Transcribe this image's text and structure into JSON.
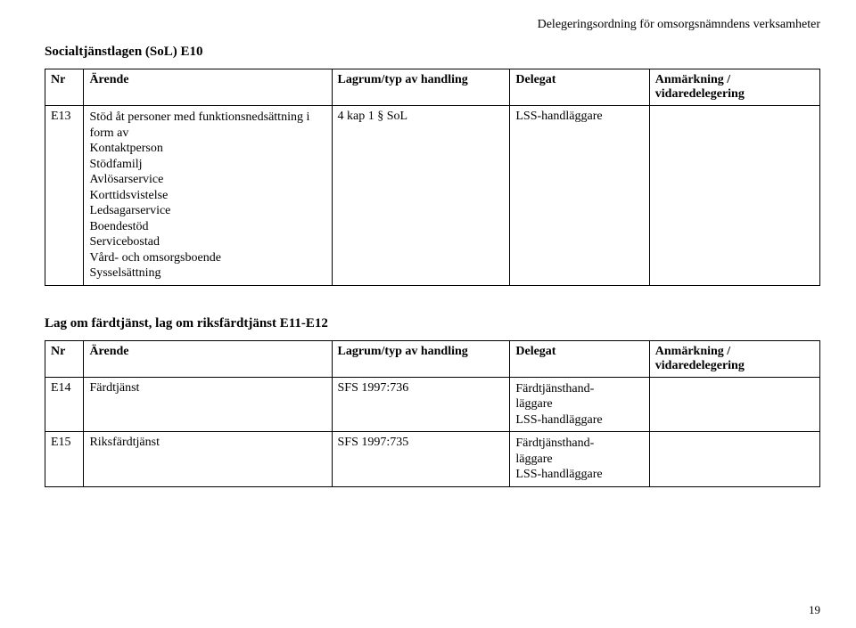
{
  "doc_header": "Delegeringsordning för omsorgsnämndens verksamheter",
  "page_number": "19",
  "section1": {
    "title": "Socialtjänstlagen (SoL) E10",
    "columns": {
      "nr": "Nr",
      "arende": "Ärende",
      "lagrum": "Lagrum/typ av handling",
      "delegat": "Delegat",
      "anmarkning": "Anmärkning / vidaredelegering"
    },
    "row": {
      "nr": "E13",
      "arende_lines": [
        "Stöd åt personer med funktionsnedsättning i",
        "form av",
        "Kontaktperson",
        "Stödfamilj",
        "Avlösarservice",
        "Korttidsvistelse",
        "Ledsagarservice",
        "Boendestöd",
        "Servicebostad",
        "Vård- och omsorgsboende",
        "Sysselsättning"
      ],
      "lagrum": "4 kap 1 § SoL",
      "delegat": "LSS-handläggare",
      "anmarkning": ""
    }
  },
  "section2": {
    "title": "Lag om färdtjänst, lag om riksfärdtjänst E11-E12",
    "columns": {
      "nr": "Nr",
      "arende": "Ärende",
      "lagrum": "Lagrum/typ av handling",
      "delegat": "Delegat",
      "anmarkning": "Anmärkning / vidaredelegering"
    },
    "rows": [
      {
        "nr": "E14",
        "arende": "Färdtjänst",
        "lagrum": "SFS 1997:736",
        "delegat_lines": [
          "Färdtjänsthand-",
          "läggare",
          "LSS-handläggare"
        ],
        "anmarkning": ""
      },
      {
        "nr": "E15",
        "arende": "Riksfärdtjänst",
        "lagrum": "SFS 1997:735",
        "delegat_lines": [
          "Färdtjänsthand-",
          "läggare",
          "LSS-handläggare"
        ],
        "anmarkning": ""
      }
    ]
  }
}
